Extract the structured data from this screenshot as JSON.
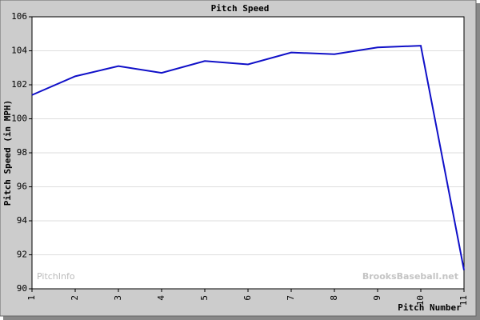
{
  "chart_data": {
    "type": "line",
    "title": "Pitch Speed",
    "x_label": "Pitch Number",
    "y_label": "Pitch Speed (in MPH)",
    "x": [
      1,
      2,
      3,
      4,
      5,
      6,
      7,
      8,
      9,
      10,
      11
    ],
    "series": [
      {
        "name": "Pitch Speed",
        "color": "#1010c8",
        "values": [
          101.4,
          102.5,
          103.1,
          102.7,
          103.4,
          103.2,
          103.9,
          103.8,
          104.2,
          104.3,
          91.1
        ]
      }
    ],
    "xlim": [
      1,
      11
    ],
    "xticks": [
      1,
      2,
      3,
      4,
      5,
      6,
      7,
      8,
      9,
      10,
      11
    ],
    "ylim": [
      90,
      106
    ],
    "yticks": [
      90,
      92,
      94,
      96,
      98,
      100,
      102,
      104,
      106
    ],
    "grid": true,
    "watermarks": [
      "PitchInfo",
      "BrooksBaseball.net"
    ]
  }
}
